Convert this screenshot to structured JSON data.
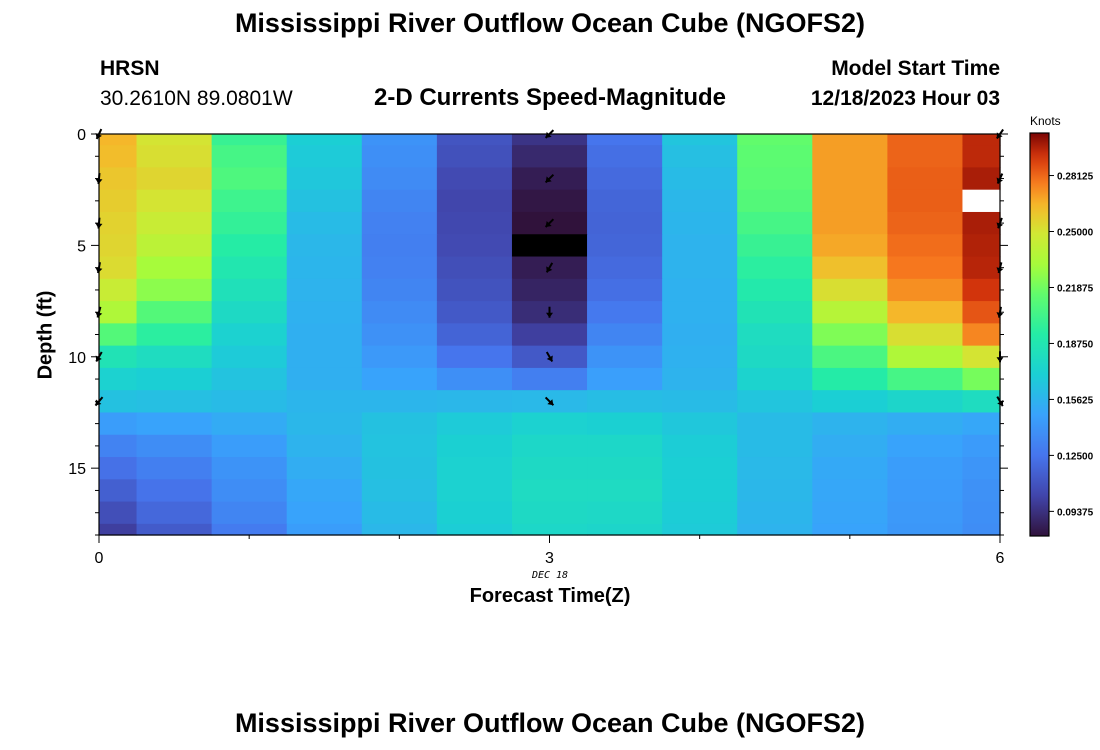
{
  "chart_data": {
    "type": "heatmap",
    "title": "Mississippi River Outflow Ocean Cube (NGOFS2)",
    "station": "HRSN",
    "location": "30.2610N  89.0801W",
    "subtitle": "2-D Currents Speed-Magnitude",
    "model_start_label": "Model Start Time",
    "model_start_value": "12/18/2023 Hour 03",
    "xlabel": "Forecast Time(Z)",
    "x_date_label": "DEC 18",
    "ylabel": "Depth (ft)",
    "x_ticks": [
      "0",
      "3",
      "6"
    ],
    "x_range": [
      0,
      6
    ],
    "y_ticks": [
      "0",
      "5",
      "10",
      "15"
    ],
    "y_range": [
      0,
      18
    ],
    "colorbar_unit": "Knots",
    "colorbar_ticks": [
      "0.28125",
      "0.25000",
      "0.21875",
      "0.18750",
      "0.15625",
      "0.12500",
      "0.09375"
    ],
    "colorbar_range": [
      0.08,
      0.305
    ],
    "columns": [
      0,
      0.5,
      1,
      1.5,
      2,
      2.5,
      3,
      3.5,
      4,
      4.5,
      5,
      5.5,
      6
    ],
    "depth_rows": [
      0,
      1,
      2,
      3,
      4,
      5,
      6,
      7,
      8,
      9,
      10,
      11,
      12,
      13,
      14,
      15,
      16,
      17,
      18
    ],
    "speed_knots": [
      [
        0.265,
        0.25,
        0.2,
        0.17,
        0.14,
        0.11,
        0.095,
        0.125,
        0.165,
        0.215,
        0.27,
        0.282,
        0.295
      ],
      [
        0.263,
        0.252,
        0.205,
        0.168,
        0.138,
        0.108,
        0.09,
        0.122,
        0.162,
        0.213,
        0.27,
        0.282,
        0.295
      ],
      [
        0.26,
        0.255,
        0.208,
        0.166,
        0.136,
        0.105,
        0.085,
        0.12,
        0.16,
        0.212,
        0.27,
        0.283,
        0.298
      ],
      [
        0.258,
        0.25,
        0.202,
        0.163,
        0.133,
        0.103,
        0.082,
        0.118,
        0.158,
        0.21,
        0.27,
        0.283,
        null
      ],
      [
        0.256,
        0.245,
        0.198,
        0.16,
        0.131,
        0.104,
        0.08,
        0.117,
        0.157,
        0.205,
        0.27,
        0.282,
        0.298
      ],
      [
        0.255,
        0.24,
        0.193,
        0.158,
        0.13,
        0.105,
        0.0,
        0.118,
        0.156,
        0.2,
        0.268,
        0.28,
        0.297
      ],
      [
        0.253,
        0.232,
        0.188,
        0.157,
        0.131,
        0.107,
        0.085,
        0.12,
        0.156,
        0.195,
        0.262,
        0.278,
        0.296
      ],
      [
        0.245,
        0.225,
        0.183,
        0.156,
        0.133,
        0.109,
        0.088,
        0.122,
        0.155,
        0.19,
        0.252,
        0.273,
        0.292
      ],
      [
        0.235,
        0.21,
        0.178,
        0.155,
        0.136,
        0.112,
        0.092,
        0.127,
        0.155,
        0.185,
        0.238,
        0.265,
        0.285
      ],
      [
        0.21,
        0.195,
        0.172,
        0.154,
        0.139,
        0.117,
        0.1,
        0.133,
        0.154,
        0.18,
        0.222,
        0.252,
        0.275
      ],
      [
        0.185,
        0.18,
        0.168,
        0.154,
        0.143,
        0.125,
        0.112,
        0.14,
        0.155,
        0.178,
        0.207,
        0.235,
        0.25
      ],
      [
        0.172,
        0.17,
        0.164,
        0.154,
        0.148,
        0.138,
        0.13,
        0.146,
        0.156,
        0.173,
        0.192,
        0.205,
        0.22
      ],
      [
        0.163,
        0.162,
        0.16,
        0.157,
        0.157,
        0.158,
        0.159,
        0.161,
        0.16,
        0.165,
        0.17,
        0.175,
        0.18
      ],
      [
        0.145,
        0.148,
        0.152,
        0.158,
        0.163,
        0.168,
        0.172,
        0.171,
        0.166,
        0.16,
        0.156,
        0.153,
        0.15
      ],
      [
        0.132,
        0.137,
        0.145,
        0.156,
        0.164,
        0.171,
        0.176,
        0.176,
        0.169,
        0.16,
        0.153,
        0.148,
        0.144
      ],
      [
        0.123,
        0.13,
        0.14,
        0.153,
        0.163,
        0.172,
        0.178,
        0.178,
        0.17,
        0.159,
        0.151,
        0.145,
        0.141
      ],
      [
        0.115,
        0.124,
        0.137,
        0.15,
        0.162,
        0.172,
        0.179,
        0.179,
        0.17,
        0.158,
        0.15,
        0.144,
        0.139
      ],
      [
        0.107,
        0.119,
        0.133,
        0.148,
        0.16,
        0.171,
        0.178,
        0.177,
        0.169,
        0.157,
        0.149,
        0.143,
        0.138
      ],
      [
        0.1,
        0.113,
        0.128,
        0.145,
        0.158,
        0.169,
        0.176,
        0.175,
        0.168,
        0.156,
        0.148,
        0.142,
        0.137
      ]
    ],
    "vector_columns": [
      0,
      3,
      6
    ],
    "vectors": [
      {
        "x": 0,
        "depth": 0,
        "angle": 205
      },
      {
        "x": 0,
        "depth": 2,
        "angle": 185
      },
      {
        "x": 0,
        "depth": 4,
        "angle": 185
      },
      {
        "x": 0,
        "depth": 6,
        "angle": 190
      },
      {
        "x": 0,
        "depth": 8,
        "angle": 195
      },
      {
        "x": 0,
        "depth": 10,
        "angle": 210
      },
      {
        "x": 0,
        "depth": 12,
        "angle": 220
      },
      {
        "x": 3,
        "depth": 0,
        "angle": 225
      },
      {
        "x": 3,
        "depth": 2,
        "angle": 225
      },
      {
        "x": 3,
        "depth": 4,
        "angle": 225
      },
      {
        "x": 3,
        "depth": 6,
        "angle": 210
      },
      {
        "x": 3,
        "depth": 8,
        "angle": 180
      },
      {
        "x": 3,
        "depth": 10,
        "angle": 150
      },
      {
        "x": 3,
        "depth": 12,
        "angle": 135
      },
      {
        "x": 6,
        "depth": 0,
        "angle": 215
      },
      {
        "x": 6,
        "depth": 2,
        "angle": 205
      },
      {
        "x": 6,
        "depth": 4,
        "angle": 200
      },
      {
        "x": 6,
        "depth": 6,
        "angle": 195
      },
      {
        "x": 6,
        "depth": 8,
        "angle": 190
      },
      {
        "x": 6,
        "depth": 10,
        "angle": 180
      },
      {
        "x": 6,
        "depth": 12,
        "angle": 150
      }
    ]
  },
  "footer": {
    "repeat_title": "Mississippi River Outflow Ocean Cube (NGOFS2)"
  }
}
